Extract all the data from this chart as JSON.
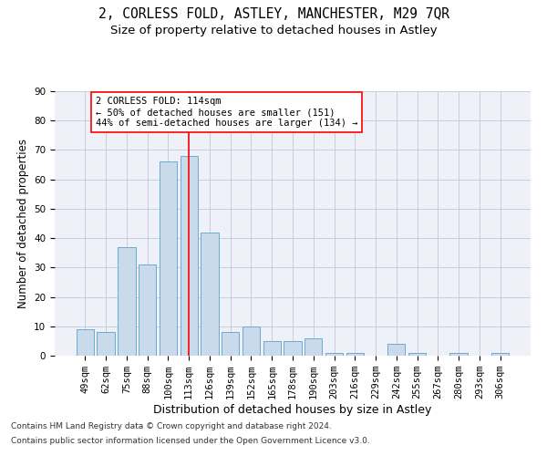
{
  "title": "2, CORLESS FOLD, ASTLEY, MANCHESTER, M29 7QR",
  "subtitle": "Size of property relative to detached houses in Astley",
  "xlabel": "Distribution of detached houses by size in Astley",
  "ylabel": "Number of detached properties",
  "categories": [
    "49sqm",
    "62sqm",
    "75sqm",
    "88sqm",
    "100sqm",
    "113sqm",
    "126sqm",
    "139sqm",
    "152sqm",
    "165sqm",
    "178sqm",
    "190sqm",
    "203sqm",
    "216sqm",
    "229sqm",
    "242sqm",
    "255sqm",
    "267sqm",
    "280sqm",
    "293sqm",
    "306sqm"
  ],
  "values": [
    9,
    8,
    37,
    31,
    66,
    68,
    42,
    8,
    10,
    5,
    5,
    6,
    1,
    1,
    0,
    4,
    1,
    0,
    1,
    0,
    1
  ],
  "bar_color": "#c9daea",
  "bar_edge_color": "#6aaad4",
  "red_line_x": 5,
  "ylim": [
    0,
    90
  ],
  "yticks": [
    0,
    10,
    20,
    30,
    40,
    50,
    60,
    70,
    80,
    90
  ],
  "annotation_box_text": "2 CORLESS FOLD: 114sqm\n← 50% of detached houses are smaller (151)\n44% of semi-detached houses are larger (134) →",
  "footer_line1": "Contains HM Land Registry data © Crown copyright and database right 2024.",
  "footer_line2": "Contains public sector information licensed under the Open Government Licence v3.0.",
  "background_color": "#ffffff",
  "ax_background": "#eef2f8",
  "grid_color": "#c8cdd8",
  "title_fontsize": 10.5,
  "subtitle_fontsize": 9.5,
  "xlabel_fontsize": 9,
  "ylabel_fontsize": 8.5,
  "tick_fontsize": 7.5,
  "annotation_fontsize": 7.5,
  "footer_fontsize": 6.5
}
